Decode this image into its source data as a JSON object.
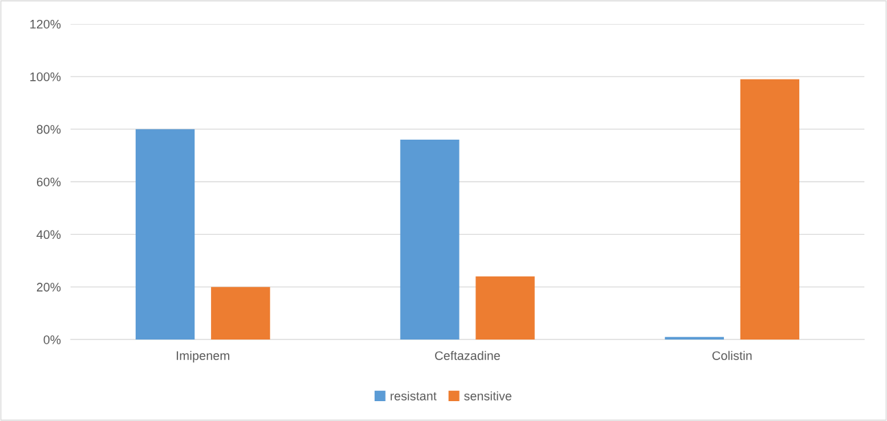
{
  "chart_data": {
    "type": "bar",
    "categories": [
      "Imipenem",
      "Ceftazadine",
      "Colistin"
    ],
    "series": [
      {
        "name": "resistant",
        "color": "#5b9bd5",
        "values": [
          80,
          76,
          1
        ]
      },
      {
        "name": "sensitive",
        "color": "#ed7d31",
        "values": [
          20,
          24,
          99
        ]
      }
    ],
    "ylim": [
      0,
      120
    ],
    "yticks": [
      {
        "value": 0,
        "label": "0%"
      },
      {
        "value": 20,
        "label": "20%"
      },
      {
        "value": 40,
        "label": "40%"
      },
      {
        "value": 60,
        "label": "60%"
      },
      {
        "value": 80,
        "label": "80%"
      },
      {
        "value": 100,
        "label": "100%"
      },
      {
        "value": 120,
        "label": "120%"
      }
    ],
    "grid": "y",
    "legend": "bottom"
  }
}
